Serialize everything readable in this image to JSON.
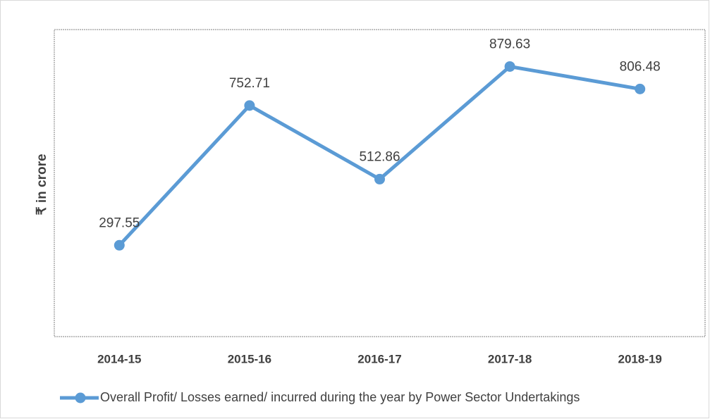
{
  "chart_data": {
    "type": "line",
    "ylabel": "₹ in crore",
    "categories": [
      "2014-15",
      "2015-16",
      "2016-17",
      "2017-18",
      "2018-19"
    ],
    "series": [
      {
        "name": "Overall Profit/ Losses earned/ incurred during the year by Power Sector Undertakings",
        "color": "#5b9bd5",
        "values": [
          297.55,
          752.71,
          512.86,
          879.63,
          806.48
        ]
      }
    ],
    "ylim": [
      0,
      1000
    ],
    "legend": "bottom"
  }
}
